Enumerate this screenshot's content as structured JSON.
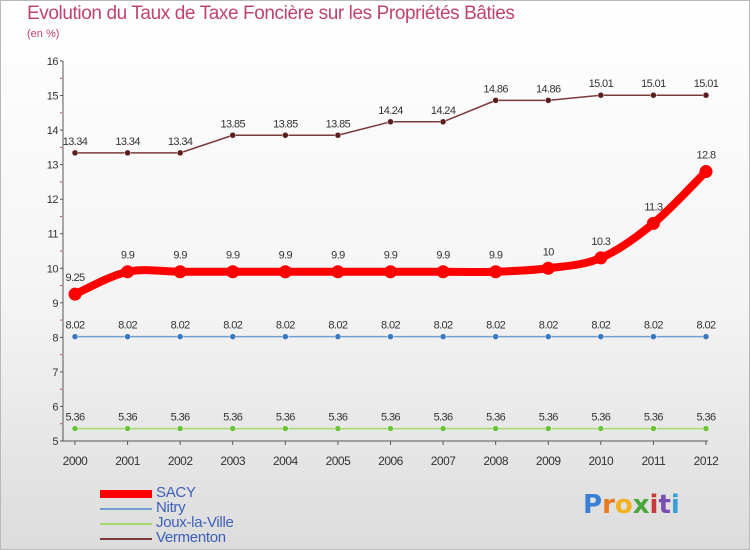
{
  "title": "Evolution du Taux de Taxe Foncière sur les Propriétés Bâties",
  "unit_label": "(en %)",
  "logo": {
    "text": "Proxiti",
    "letters": [
      "P",
      "r",
      "o",
      "x",
      "i",
      "t",
      "i"
    ],
    "colors": [
      "#3a7fd5",
      "#e8791f",
      "#f2b21f",
      "#4aa53a",
      "#c63a3a",
      "#7a4db0",
      "#3a9fd5"
    ]
  },
  "chart_data": {
    "type": "line",
    "title": "Evolution du Taux de Taxe Foncière sur les Propriétés Bâties",
    "xlabel": "",
    "ylabel": "(en %)",
    "ylim": [
      5,
      16
    ],
    "yticks": [
      "5",
      "6",
      "7",
      "8",
      "9",
      "10",
      "11",
      "12",
      "13",
      "14",
      "15",
      "16"
    ],
    "categories": [
      "2000",
      "2001",
      "2002",
      "2003",
      "2004",
      "2005",
      "2006",
      "2007",
      "2008",
      "2009",
      "2010",
      "2011",
      "2012"
    ],
    "grid": false,
    "legend_position": "bottom-left",
    "series": [
      {
        "name": "Vermenton",
        "color": "#7a3a3a",
        "marker_color": "#5a1e1e",
        "style": "thin",
        "values": [
          13.34,
          13.34,
          13.34,
          13.85,
          13.85,
          13.85,
          14.24,
          14.24,
          14.86,
          14.86,
          15.01,
          15.01,
          15.01
        ],
        "labels": [
          "13.34",
          "13.34",
          "13.34",
          "13.85",
          "13.85",
          "13.85",
          "14.24",
          "14.24",
          "14.86",
          "14.86",
          "15.01",
          "15.01",
          "15.01"
        ]
      },
      {
        "name": "SACY",
        "color": "#ff0000",
        "marker_color": "#ff0000",
        "style": "thick",
        "values": [
          9.25,
          9.9,
          9.9,
          9.9,
          9.9,
          9.9,
          9.9,
          9.9,
          9.9,
          10,
          10.3,
          11.3,
          12.8
        ],
        "labels": [
          "9.25",
          "9.9",
          "9.9",
          "9.9",
          "9.9",
          "9.9",
          "9.9",
          "9.9",
          "9.9",
          "10",
          "10.3",
          "11.3",
          "12.8"
        ]
      },
      {
        "name": "Nitry",
        "color": "#6f9fd0",
        "marker_color": "#3a78c0",
        "style": "thin",
        "values": [
          8.02,
          8.02,
          8.02,
          8.02,
          8.02,
          8.02,
          8.02,
          8.02,
          8.02,
          8.02,
          8.02,
          8.02,
          8.02
        ],
        "labels": [
          "8.02",
          "8.02",
          "8.02",
          "8.02",
          "8.02",
          "8.02",
          "8.02",
          "8.02",
          "8.02",
          "8.02",
          "8.02",
          "8.02",
          "8.02"
        ]
      },
      {
        "name": "Joux-la-Ville",
        "color": "#a6d86e",
        "marker_color": "#6cc23a",
        "style": "thin",
        "values": [
          5.36,
          5.36,
          5.36,
          5.36,
          5.36,
          5.36,
          5.36,
          5.36,
          5.36,
          5.36,
          5.36,
          5.36,
          5.36
        ],
        "labels": [
          "5.36",
          "5.36",
          "5.36",
          "5.36",
          "5.36",
          "5.36",
          "5.36",
          "5.36",
          "5.36",
          "5.36",
          "5.36",
          "5.36",
          "5.36"
        ]
      }
    ],
    "legend": [
      {
        "name": "SACY",
        "color": "#ff0000",
        "style": "thick"
      },
      {
        "name": "Nitry",
        "color": "#6f9fd0",
        "style": "thin"
      },
      {
        "name": "Joux-la-Ville",
        "color": "#a6d86e",
        "style": "thin"
      },
      {
        "name": "Vermenton",
        "color": "#7a3a3a",
        "style": "thin"
      }
    ]
  }
}
